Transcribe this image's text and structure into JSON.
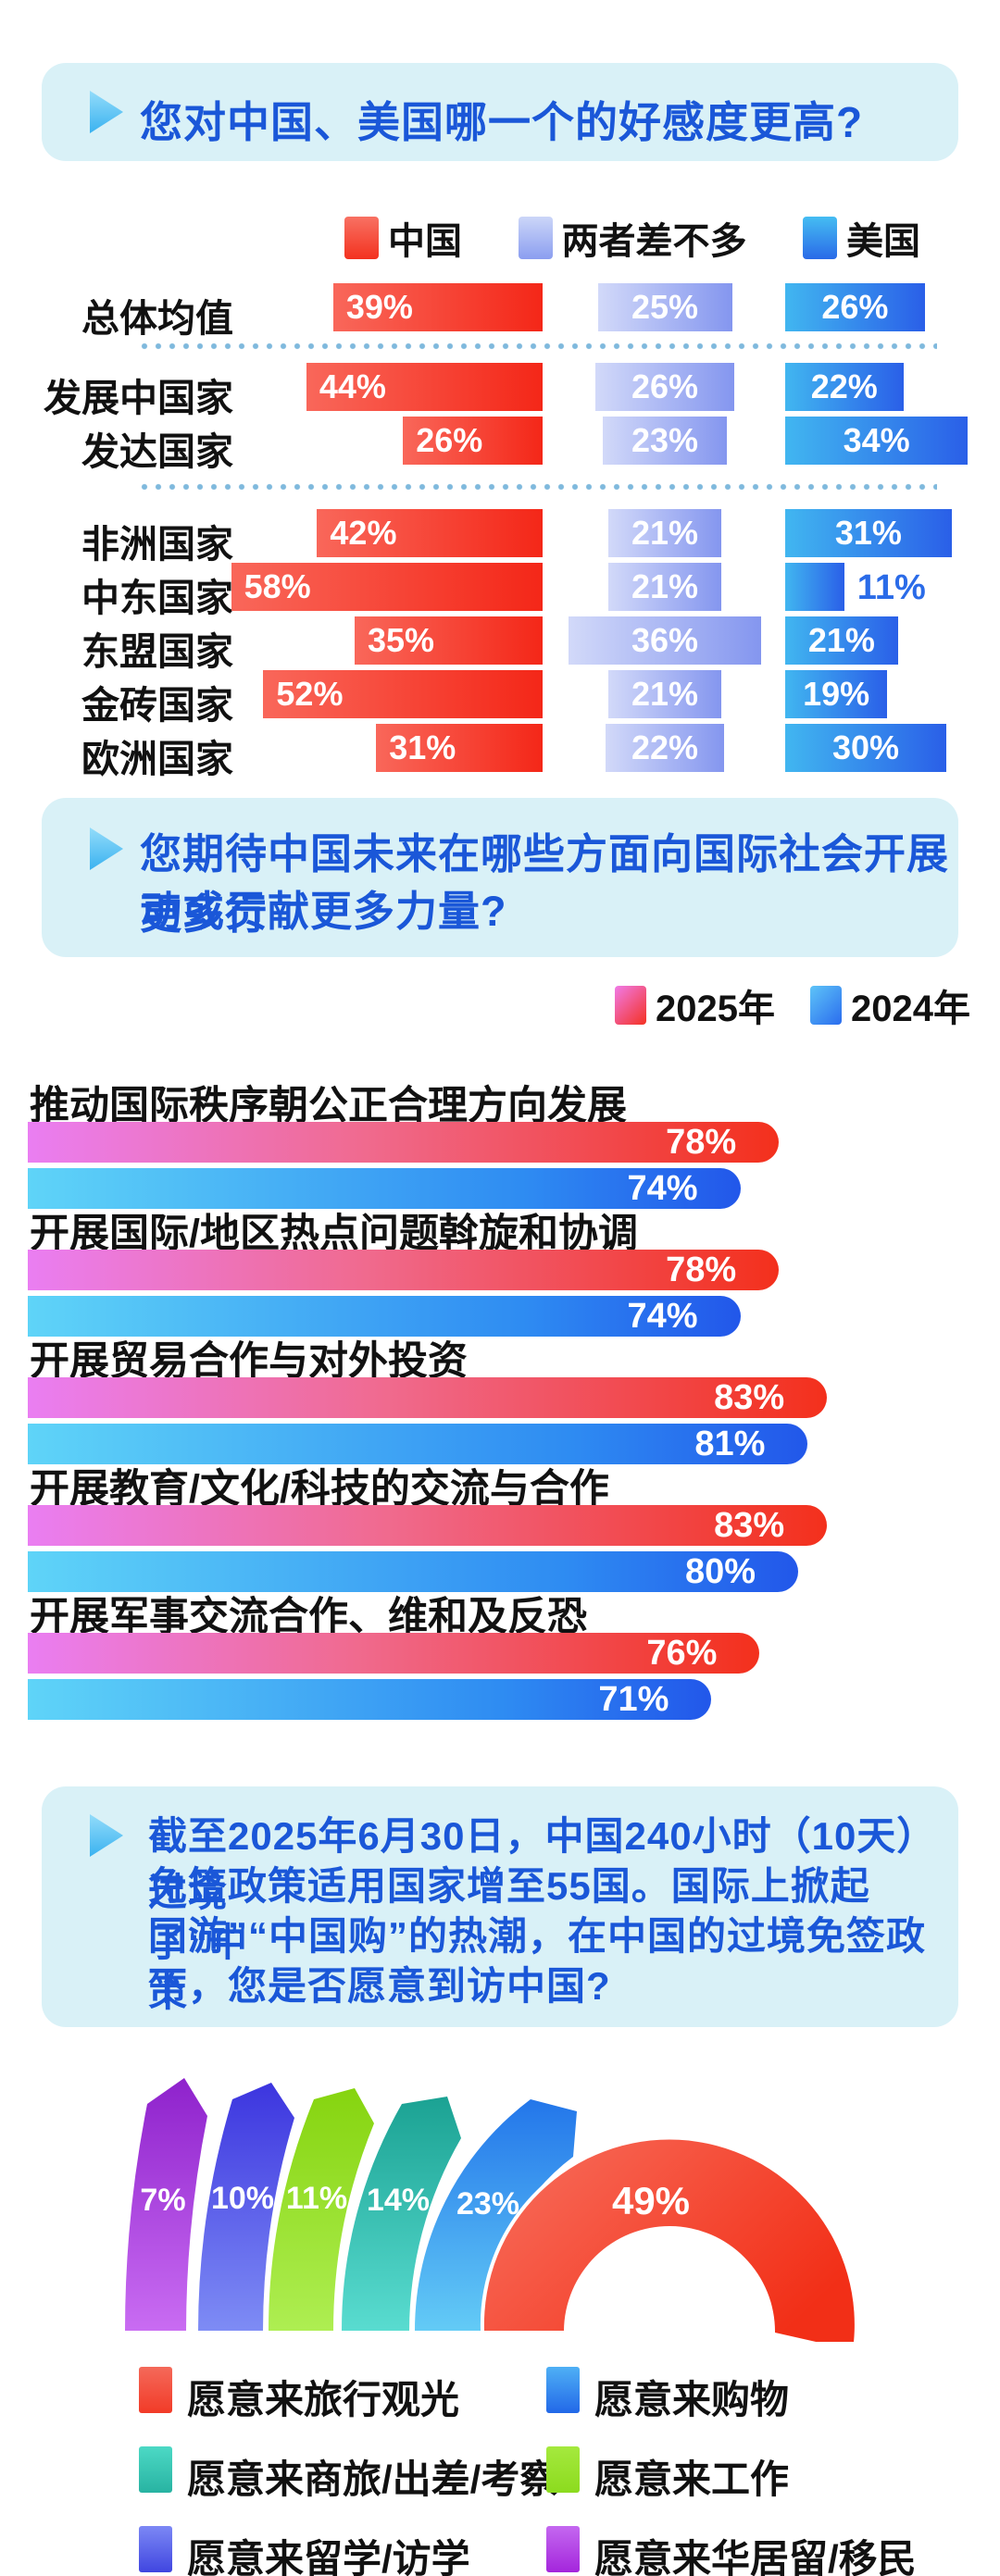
{
  "colors": {
    "title_blue": "#1a57d8",
    "header_box_bg": "#d9f1f7",
    "china_red": "#f42718",
    "neutral_periwinkle": "#8b9ef0",
    "usa_blue": "#2a6ae8",
    "y2025_gradient": [
      "#ea7ef2",
      "#f3301c"
    ],
    "y2024_gradient": [
      "#5fd4f8",
      "#2257ea"
    ],
    "fan_red": "#f3331c",
    "fan_blue": "#2376ea",
    "fan_teal": "#1ba293",
    "fan_green": "#86d40f",
    "fan_blueviolet": "#3c35df",
    "fan_purple": "#8e22cc"
  },
  "chart_data": [
    {
      "type": "bar",
      "title": "您对中国、美国哪一个的好感度更高?",
      "orientation": "horizontal-grouped",
      "legend": [
        "中国",
        "两者差不多",
        "美国"
      ],
      "categories": [
        "总体均值",
        "发展中国家",
        "发达国家",
        "非洲国家",
        "中东国家",
        "东盟国家",
        "金砖国家",
        "欧洲国家"
      ],
      "series": [
        {
          "name": "中国",
          "values": [
            39,
            44,
            26,
            42,
            58,
            35,
            52,
            31
          ]
        },
        {
          "name": "两者差不多",
          "values": [
            25,
            26,
            23,
            21,
            21,
            36,
            21,
            22
          ]
        },
        {
          "name": "美国",
          "values": [
            26,
            22,
            34,
            31,
            11,
            21,
            19,
            30
          ]
        }
      ],
      "xlim": [
        0,
        100
      ],
      "unit": "%"
    },
    {
      "type": "bar",
      "title": "您期待中国未来在哪些方面向国际社会开展更多行动或贡献更多力量?",
      "orientation": "horizontal-paired",
      "legend": [
        "2025年",
        "2024年"
      ],
      "categories": [
        "推动国际秩序朝公正合理方向发展",
        "开展国际/地区热点问题斡旋和协调",
        "开展贸易合作与对外投资",
        "开展教育/文化/科技的交流与合作",
        "开展军事交流合作、维和及反恐"
      ],
      "series": [
        {
          "name": "2025年",
          "values": [
            78,
            78,
            83,
            83,
            76
          ]
        },
        {
          "name": "2024年",
          "values": [
            74,
            74,
            81,
            80,
            71
          ]
        }
      ],
      "xlim": [
        0,
        100
      ],
      "unit": "%"
    },
    {
      "type": "pie",
      "title": "截至2025年6月30日，中国240小时（10天）过境免签政策适用国家增至55国。国际上掀起了“中国游”“中国购”的热潮，在中国的过境免签政策下，您是否愿意到访中国?",
      "style": "fan-petal-semicircle",
      "labels": [
        "愿意来旅行观光",
        "愿意来购物",
        "愿意来商旅/出差/考察",
        "愿意来工作",
        "愿意来留学/访学",
        "愿意来华居留/移民"
      ],
      "values": [
        49,
        23,
        14,
        11,
        10,
        7
      ],
      "unit": "%"
    }
  ],
  "ui": {
    "s1": {
      "title": "您对中国、美国哪一个的好感度更高?",
      "legend": {
        "china": "中国",
        "neutral": "两者差不多",
        "usa": "美国"
      },
      "rows": [
        {
          "label": "总体均值",
          "china": "39%",
          "neutral": "25%",
          "usa": "26%"
        },
        {
          "label": "发展中国家",
          "china": "44%",
          "neutral": "26%",
          "usa": "22%"
        },
        {
          "label": "发达国家",
          "china": "26%",
          "neutral": "23%",
          "usa": "34%"
        },
        {
          "label": "非洲国家",
          "china": "42%",
          "neutral": "21%",
          "usa": "31%"
        },
        {
          "label": "中东国家",
          "china": "58%",
          "neutral": "21%",
          "usa": "11%"
        },
        {
          "label": "东盟国家",
          "china": "35%",
          "neutral": "36%",
          "usa": "21%"
        },
        {
          "label": "金砖国家",
          "china": "52%",
          "neutral": "21%",
          "usa": "19%"
        },
        {
          "label": "欧洲国家",
          "china": "31%",
          "neutral": "22%",
          "usa": "30%"
        }
      ]
    },
    "s2": {
      "title1": "您期待中国未来在哪些方面向国际社会开展更多行",
      "title2": "动或贡献更多力量?",
      "legend": {
        "y2025": "2025年",
        "y2024": "2024年"
      },
      "items": [
        {
          "label": "推动国际秩序朝公正合理方向发展",
          "v2025": "78%",
          "v2024": "74%"
        },
        {
          "label": "开展国际/地区热点问题斡旋和协调",
          "v2025": "78%",
          "v2024": "74%"
        },
        {
          "label": "开展贸易合作与对外投资",
          "v2025": "83%",
          "v2024": "81%"
        },
        {
          "label": "开展教育/文化/科技的交流与合作",
          "v2025": "83%",
          "v2024": "80%"
        },
        {
          "label": "开展军事交流合作、维和及反恐",
          "v2025": "76%",
          "v2024": "71%"
        }
      ]
    },
    "s3": {
      "title_lines": [
        "截至2025年6月30日，中国240小时（10天）过境",
        "免签政策适用国家增至55国。国际上掀起了“中",
        "国游”“中国购”的热潮，在中国的过境免签政策",
        "下，您是否愿意到访中国?"
      ],
      "segments": [
        {
          "name": "愿意来华居留/移民",
          "pct": "7%"
        },
        {
          "name": "愿意来留学/访学",
          "pct": "10%"
        },
        {
          "name": "愿意来工作",
          "pct": "11%"
        },
        {
          "name": "愿意来商旅/出差/考察",
          "pct": "14%"
        },
        {
          "name": "愿意来购物",
          "pct": "23%"
        },
        {
          "name": "愿意来旅行观光",
          "pct": "49%"
        }
      ],
      "legend": [
        {
          "label": "愿意来旅行观光"
        },
        {
          "label": "愿意来购物"
        },
        {
          "label": "愿意来商旅/出差/考察"
        },
        {
          "label": "愿意来工作"
        },
        {
          "label": "愿意来留学/访学"
        },
        {
          "label": "愿意来华居留/移民"
        }
      ]
    }
  }
}
